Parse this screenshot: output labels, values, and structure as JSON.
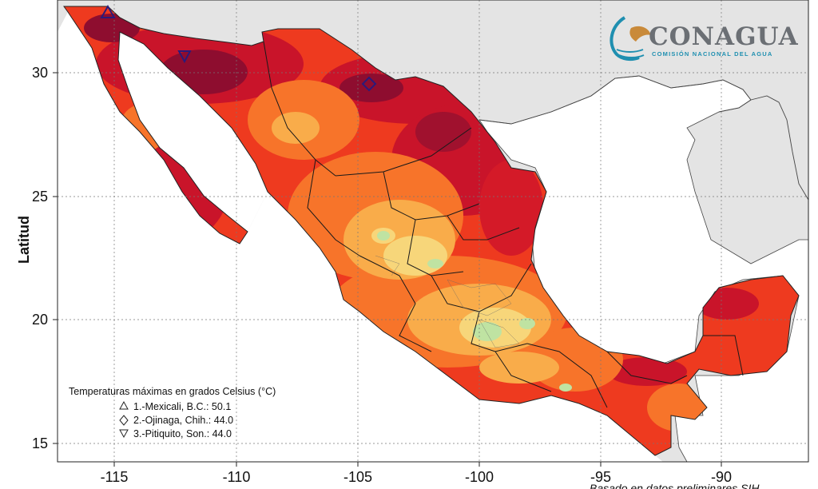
{
  "chart": {
    "ylabel": "Latitud",
    "x_ticks": [
      "-115",
      "-110",
      "-105",
      "-100",
      "-95",
      "-90"
    ],
    "y_ticks": [
      "30",
      "25",
      "20",
      "15"
    ],
    "footer_text": "Basado en datos preliminares SIH"
  },
  "logo": {
    "name": "CONAGUA",
    "subtitle": "COMISIÓN NACIONAL DEL AGUA"
  },
  "legend": {
    "title": "Temperaturas máximas en grados Celsius (°C)",
    "items": [
      {
        "symbol": "△",
        "label": "1.-Mexicali, B.C.: 50.1"
      },
      {
        "symbol": "◇",
        "label": "2.-Ojinaga, Chih.: 44.0"
      },
      {
        "symbol": "▽",
        "label": "3.-Pitiquito, Son.: 44.0"
      }
    ]
  },
  "map_data": {
    "x_range": [
      -117.3,
      -86.5
    ],
    "y_range": [
      14.5,
      33.0
    ],
    "stations": [
      {
        "name": "Mexicali, B.C.",
        "lon": -115.4,
        "lat": 32.6,
        "tmax": 50.1,
        "marker": "triangle-up"
      },
      {
        "name": "Ojinaga, Chih.",
        "lon": -104.4,
        "lat": 29.6,
        "tmax": 44.0,
        "marker": "diamond"
      },
      {
        "name": "Pitiquito, Son.",
        "lon": -112.1,
        "lat": 30.7,
        "tmax": 44.0,
        "marker": "triangle-down"
      }
    ],
    "colors": {
      "land_bg": "#e4e4e4",
      "ocean": "#ffffff",
      "very_hot": "#8e0d2f",
      "hot": "#c9142a",
      "warm": "#ee3a1f",
      "mild": "#f7742a",
      "cool": "#f9ac4a",
      "fresh": "#f7d67a",
      "green": "#bfe3a2",
      "station_marker": "#2b1a7a"
    }
  }
}
